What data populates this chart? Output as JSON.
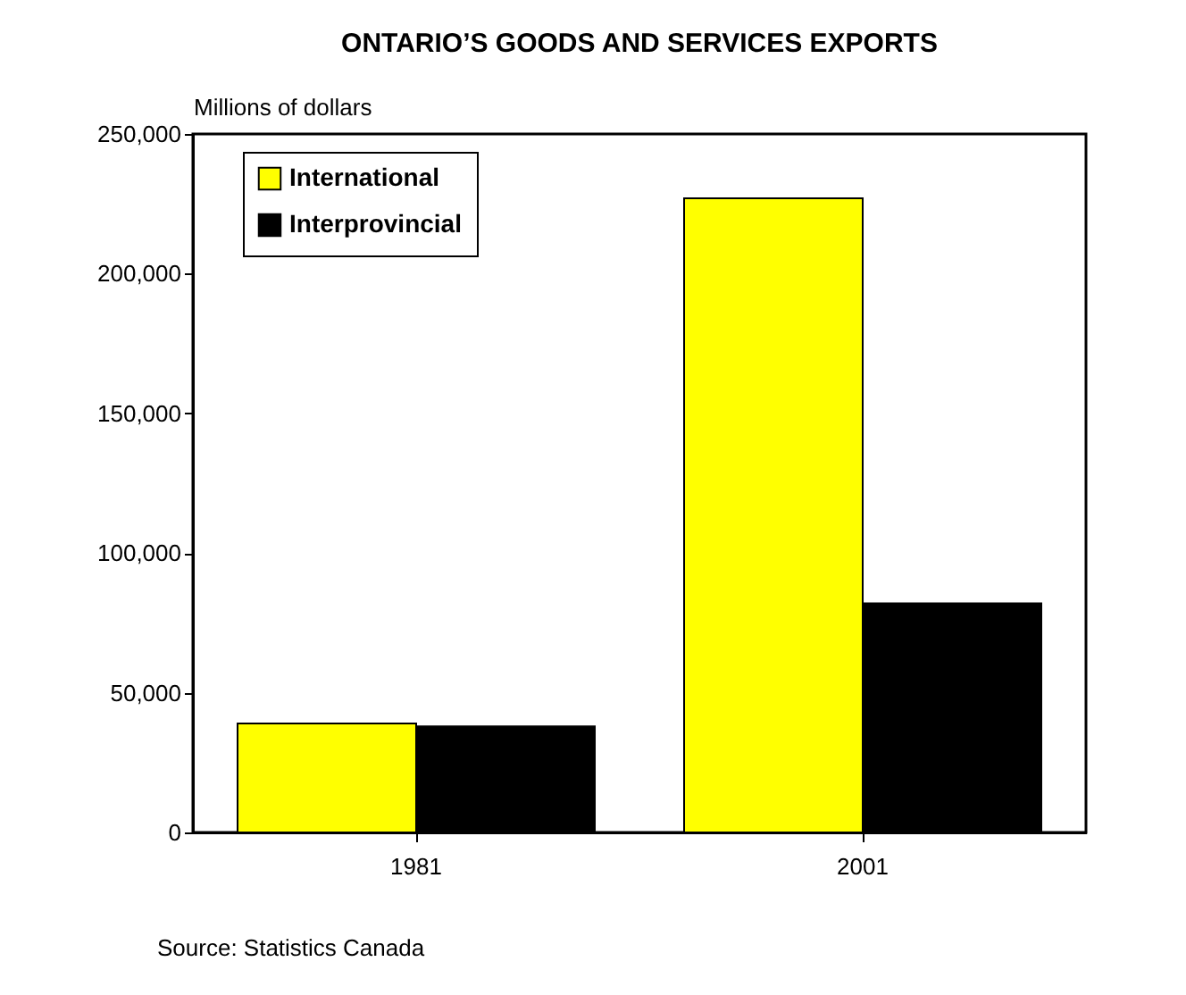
{
  "chart_data": {
    "type": "bar",
    "title": "ONTARIO’S GOODS AND SERVICES EXPORTS",
    "ylabel": "Millions of dollars",
    "categories": [
      "1981",
      "2001"
    ],
    "series": [
      {
        "name": "International",
        "color": "#ffff00",
        "values": [
          39000,
          227000
        ]
      },
      {
        "name": "Interprovincial",
        "color": "#000000",
        "values": [
          38000,
          82000
        ]
      }
    ],
    "ylim": [
      0,
      250000
    ],
    "yticks": [
      0,
      {
        "value": 50000,
        "label": "50,000"
      },
      {
        "value": 100000,
        "label": "100,000"
      },
      {
        "value": 150000,
        "label": "150,000"
      },
      {
        "value": 200000,
        "label": "200,000"
      },
      {
        "value": 250000,
        "label": "250,000"
      }
    ],
    "grid": false,
    "legend": "top left",
    "annotations": [
      "Source: Statistics Canada"
    ]
  }
}
